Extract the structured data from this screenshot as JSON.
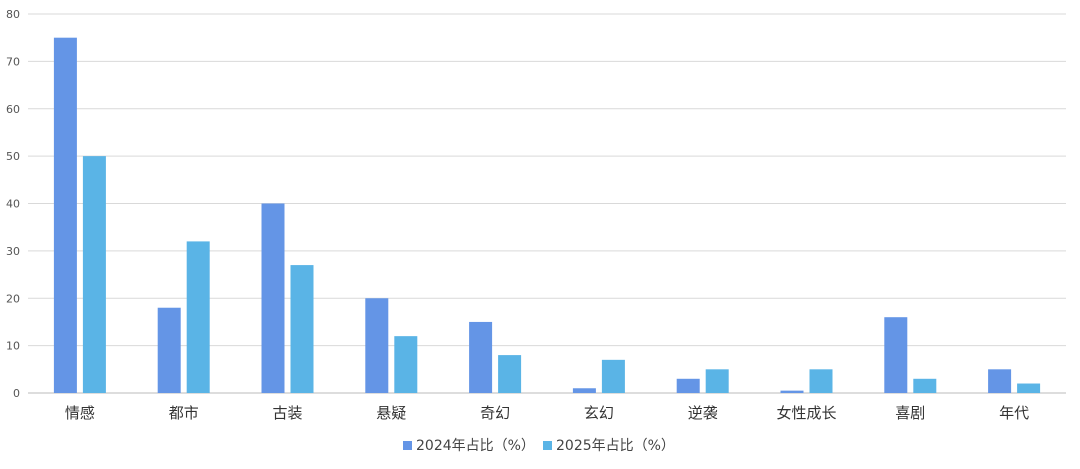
{
  "chart_data": {
    "type": "bar",
    "title": "",
    "xlabel": "",
    "ylabel": "",
    "ylim": [
      0,
      80
    ],
    "yticks": [
      0,
      10,
      20,
      30,
      40,
      50,
      60,
      70,
      80
    ],
    "grid": true,
    "legend_position": "bottom",
    "categories": [
      "情感",
      "都市",
      "古装",
      "悬疑",
      "奇幻",
      "玄幻",
      "逆袭",
      "女性成长",
      "喜剧",
      "年代"
    ],
    "series": [
      {
        "name": "2024年占比（%）",
        "color": "#6495e6",
        "values": [
          75,
          18,
          40,
          20,
          15,
          1,
          3,
          0.5,
          16,
          5
        ]
      },
      {
        "name": "2025年占比（%）",
        "color": "#5ab4e6",
        "values": [
          50,
          32,
          27,
          12,
          8,
          7,
          5,
          5,
          3,
          2
        ]
      }
    ]
  }
}
